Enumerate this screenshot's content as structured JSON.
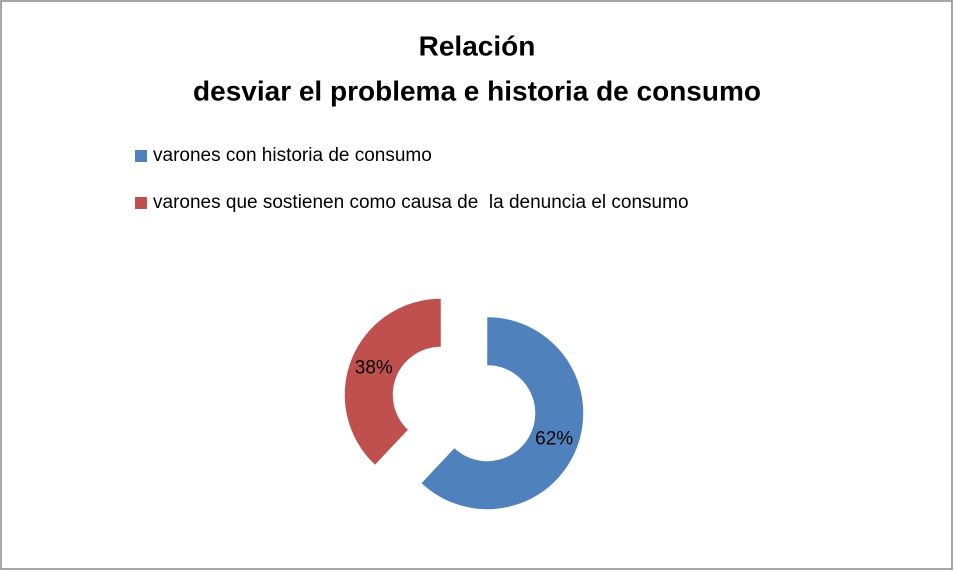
{
  "chart_data": {
    "type": "donut",
    "title": [
      "Relación",
      "desviar el problema e historia de consumo"
    ],
    "categories": [
      "varones con historia de consumo",
      "varones que sostienen como causa de  la denuncia el consumo"
    ],
    "values": [
      62,
      38
    ],
    "value_labels": [
      "62%",
      "38%"
    ],
    "colors": [
      "#4f81bd",
      "#c0504d"
    ],
    "legend": "top-left"
  }
}
